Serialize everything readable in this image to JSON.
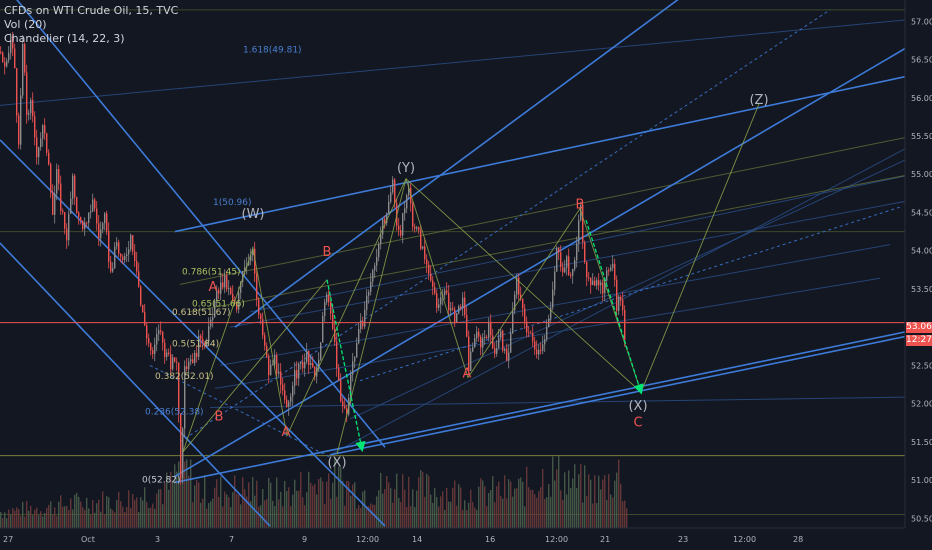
{
  "header": {
    "title": "CFDs on WTI Crude Oil, 15, TVC",
    "indicators": [
      "Vol (20)",
      "Chandelier (14, 22, 3)"
    ]
  },
  "price_tags": {
    "last_price": "53.06",
    "countdown": "12:27"
  },
  "colors": {
    "background": "#131722",
    "up_candle": "#8c8c8c",
    "down_candle": "#ef5350",
    "trend_line": "#3d7bd9",
    "thin_line": "#2a4f8a",
    "fib_line": "#6b7a3a",
    "wave_label": "#ef5350",
    "wave_label_alt": "#b2b5be",
    "projection": "#8fa84a",
    "arrow": "#00e676",
    "fib_text_blue": "#4a7fd0",
    "fib_text_green": "#a8c060",
    "price_line": "#ef5350"
  },
  "chart_data": {
    "type": "candlestick",
    "title": "CFDs on WTI Crude Oil, 15, TVC",
    "ylim": [
      50.4,
      57.2
    ],
    "y_ticks": [
      "57.00",
      "56.50",
      "56.00",
      "55.50",
      "55.00",
      "54.50",
      "54.00",
      "53.50",
      "53.00",
      "52.50",
      "52.00",
      "51.50",
      "51.00",
      "50.50"
    ],
    "x_ticks": [
      "27",
      "Oct",
      "3",
      "7",
      "9",
      "12:00",
      "14",
      "16",
      "12:00",
      "21",
      "23",
      "12:00",
      "28"
    ],
    "last_price": 53.06,
    "price_path": [
      [
        0,
        56.6
      ],
      [
        5,
        56.3
      ],
      [
        10,
        56.8
      ],
      [
        14,
        56.4
      ],
      [
        18,
        55.3
      ],
      [
        22,
        56.7
      ],
      [
        26,
        55.8
      ],
      [
        30,
        55.9
      ],
      [
        36,
        55.3
      ],
      [
        42,
        55.6
      ],
      [
        48,
        55.2
      ],
      [
        52,
        54.5
      ],
      [
        56,
        55.0
      ],
      [
        60,
        54.6
      ],
      [
        66,
        54.2
      ],
      [
        72,
        54.9
      ],
      [
        78,
        54.4
      ],
      [
        86,
        54.3
      ],
      [
        92,
        54.7
      ],
      [
        98,
        54.2
      ],
      [
        104,
        54.4
      ],
      [
        110,
        53.7
      ],
      [
        116,
        54.1
      ],
      [
        122,
        53.8
      ],
      [
        130,
        54.2
      ],
      [
        136,
        53.8
      ],
      [
        140,
        53.3
      ],
      [
        146,
        52.9
      ],
      [
        152,
        52.6
      ],
      [
        158,
        53.0
      ],
      [
        164,
        52.7
      ],
      [
        170,
        52.5
      ],
      [
        176,
        52.6
      ],
      [
        180,
        51.1
      ],
      [
        184,
        52.4
      ],
      [
        188,
        52.6
      ],
      [
        194,
        52.6
      ],
      [
        200,
        52.9
      ],
      [
        206,
        52.8
      ],
      [
        212,
        53.2
      ],
      [
        218,
        53.5
      ],
      [
        224,
        53.6
      ],
      [
        230,
        53.4
      ],
      [
        236,
        53.2
      ],
      [
        242,
        53.8
      ],
      [
        248,
        53.9
      ],
      [
        252,
        54.1
      ],
      [
        256,
        53.3
      ],
      [
        262,
        52.9
      ],
      [
        268,
        52.4
      ],
      [
        274,
        52.6
      ],
      [
        280,
        52.2
      ],
      [
        286,
        51.9
      ],
      [
        292,
        52.3
      ],
      [
        300,
        52.5
      ],
      [
        306,
        52.6
      ],
      [
        312,
        52.4
      ],
      [
        318,
        52.5
      ],
      [
        324,
        53.4
      ],
      [
        328,
        53.3
      ],
      [
        334,
        52.8
      ],
      [
        340,
        52.0
      ],
      [
        346,
        51.9
      ],
      [
        350,
        52.4
      ],
      [
        356,
        52.8
      ],
      [
        362,
        53.1
      ],
      [
        368,
        53.5
      ],
      [
        374,
        53.8
      ],
      [
        380,
        54.3
      ],
      [
        386,
        54.4
      ],
      [
        392,
        54.9
      ],
      [
        396,
        54.4
      ],
      [
        400,
        54.2
      ],
      [
        404,
        54.6
      ],
      [
        408,
        54.8
      ],
      [
        412,
        54.4
      ],
      [
        418,
        54.2
      ],
      [
        424,
        53.9
      ],
      [
        430,
        53.7
      ],
      [
        436,
        53.2
      ],
      [
        442,
        53.5
      ],
      [
        448,
        53.3
      ],
      [
        456,
        53.1
      ],
      [
        462,
        53.4
      ],
      [
        468,
        52.5
      ],
      [
        474,
        52.9
      ],
      [
        480,
        52.8
      ],
      [
        488,
        53.0
      ],
      [
        494,
        52.7
      ],
      [
        500,
        52.9
      ],
      [
        506,
        52.5
      ],
      [
        512,
        53.2
      ],
      [
        516,
        53.6
      ],
      [
        520,
        53.3
      ],
      [
        526,
        53.0
      ],
      [
        532,
        52.8
      ],
      [
        538,
        52.7
      ],
      [
        544,
        52.9
      ],
      [
        550,
        53.2
      ],
      [
        556,
        54.0
      ],
      [
        562,
        53.8
      ],
      [
        566,
        53.9
      ],
      [
        570,
        53.6
      ],
      [
        576,
        54.1
      ],
      [
        580,
        54.6
      ],
      [
        584,
        53.8
      ],
      [
        590,
        53.5
      ],
      [
        596,
        53.7
      ],
      [
        602,
        53.4
      ],
      [
        608,
        53.8
      ],
      [
        612,
        53.9
      ],
      [
        616,
        53.3
      ],
      [
        620,
        53.4
      ],
      [
        624,
        52.9
      ]
    ],
    "volume_profile": [
      [
        0,
        18
      ],
      [
        40,
        22
      ],
      [
        80,
        28
      ],
      [
        120,
        30
      ],
      [
        170,
        45
      ],
      [
        180,
        70
      ],
      [
        200,
        40
      ],
      [
        240,
        42
      ],
      [
        280,
        38
      ],
      [
        330,
        55
      ],
      [
        360,
        40
      ],
      [
        400,
        48
      ],
      [
        440,
        40
      ],
      [
        480,
        38
      ],
      [
        520,
        42
      ],
      [
        550,
        60
      ],
      [
        580,
        48
      ],
      [
        600,
        44
      ],
      [
        620,
        62
      ],
      [
        626,
        20
      ]
    ],
    "wave_labels": [
      {
        "text": "(W)",
        "x": 253,
        "y": 54.43
      },
      {
        "text": "(Y)",
        "x": 406,
        "y": 55.03
      },
      {
        "text": "(Z)",
        "x": 759,
        "y": 55.92
      },
      {
        "text": "(X)",
        "x": 337,
        "y": 51.18
      },
      {
        "text": "(X)",
        "x": 638,
        "y": 51.92
      },
      {
        "text": "A",
        "x": 213,
        "y": 53.47
      },
      {
        "text": "A",
        "x": 286,
        "y": 51.58
      },
      {
        "text": "A",
        "x": 467,
        "y": 52.34
      },
      {
        "text": "B",
        "x": 327,
        "y": 53.93
      },
      {
        "text": "B",
        "x": 580,
        "y": 54.55
      },
      {
        "text": "B",
        "x": 219,
        "y": 51.78
      },
      {
        "text": "C",
        "x": 638,
        "y": 51.7
      }
    ],
    "fib_labels": [
      {
        "text": "1.618(49.81)",
        "x": 243,
        "y": 56.59
      },
      {
        "text": "1(50.96)",
        "x": 213,
        "y": 54.6
      },
      {
        "text": "0.786(51.45)",
        "x": 182,
        "y": 53.69
      },
      {
        "text": "0.65(51.66)",
        "x": 192,
        "y": 53.27
      },
      {
        "text": "0.618(51.67)",
        "x": 172,
        "y": 53.16
      },
      {
        "text": "0.5(51.84)",
        "x": 172,
        "y": 52.75
      },
      {
        "text": "0.382(52.01)",
        "x": 155,
        "y": 52.32
      },
      {
        "text": "0.236(52.38)",
        "x": 145,
        "y": 51.86
      },
      {
        "text": "0(52.82)",
        "x": 142,
        "y": 50.97
      }
    ],
    "horizontal_levels": [
      57.15,
      54.25,
      51.32,
      50.55
    ],
    "trend_lines": [
      [
        0,
        55.45,
        385,
        50.4
      ],
      [
        0,
        57.55,
        385,
        51.43
      ],
      [
        0,
        54.1,
        270,
        50.4
      ],
      [
        175,
        54.25,
        932,
        56.35
      ],
      [
        175,
        51.05,
        932,
        56.85
      ],
      [
        175,
        50.97,
        932,
        53.01
      ],
      [
        235,
        53.0,
        690,
        57.4
      ],
      [
        330,
        51.33,
        932,
        52.95
      ]
    ],
    "thin_lines": [
      [
        0,
        55.9,
        932,
        57.05
      ],
      [
        330,
        51.33,
        932,
        55.52
      ],
      [
        250,
        53.2,
        932,
        55.05
      ],
      [
        230,
        53.0,
        932,
        54.71
      ],
      [
        220,
        52.5,
        890,
        54.08
      ],
      [
        215,
        52.2,
        880,
        53.64
      ],
      [
        210,
        51.95,
        932,
        52.09
      ],
      [
        350,
        51.8,
        932,
        55.35
      ]
    ],
    "dashed_lines": [
      [
        180,
        51.5,
        830,
        57.15
      ],
      [
        360,
        52.3,
        900,
        54.57
      ],
      [
        150,
        52.5,
        330,
        51.3
      ]
    ],
    "projections": [
      [
        183,
        51.37,
        253,
        54.03,
        287,
        51.58,
        406,
        54.94,
        468,
        52.34,
        580,
        54.55,
        641,
        52.15,
        759,
        55.92
      ],
      [
        183,
        51.37,
        327,
        53.62
      ],
      [
        337,
        51.34,
        406,
        54.94,
        641,
        52.15
      ]
    ],
    "arrows": [
      [
        327,
        53.62,
        362,
        51.4
      ],
      [
        586,
        54.4,
        641,
        52.15
      ]
    ]
  }
}
